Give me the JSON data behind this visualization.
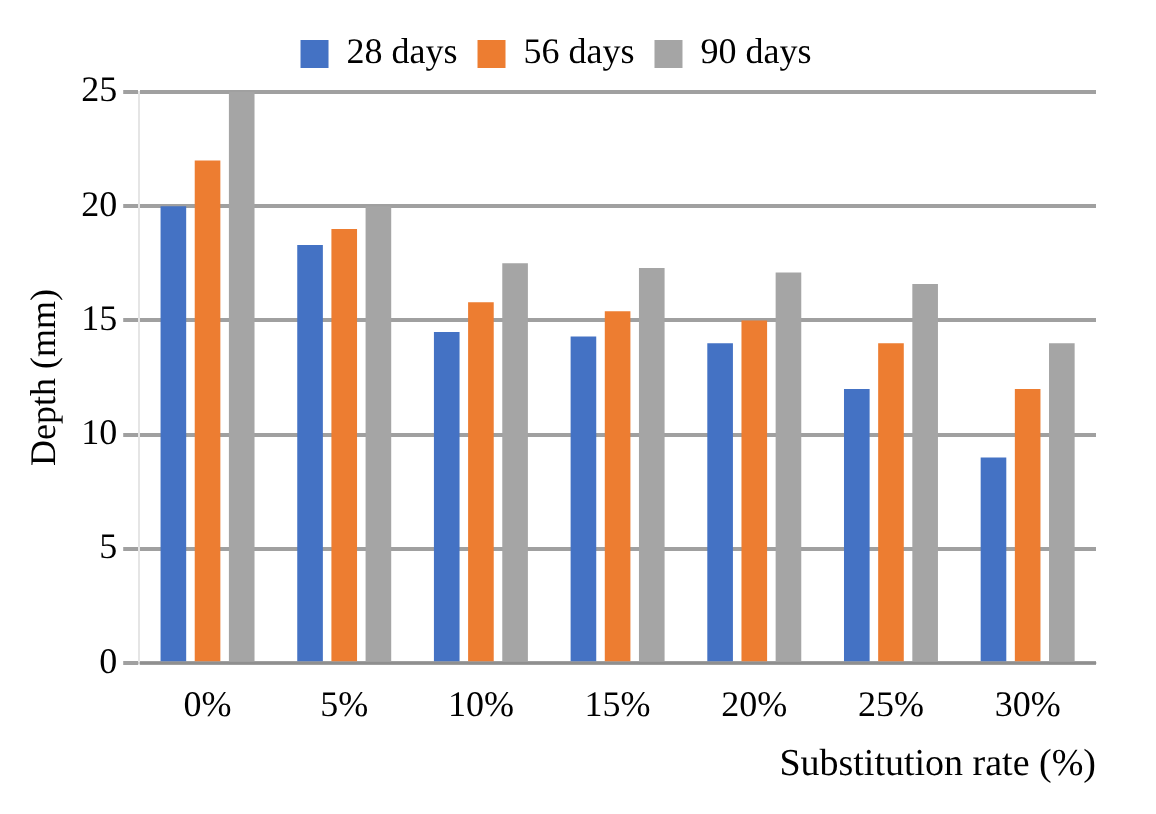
{
  "chart_data": {
    "type": "bar",
    "xlabel": "Substitution rate (%)",
    "ylabel": "Depth (mm)",
    "categories": [
      "0%",
      "5%",
      "10%",
      "15%",
      "20%",
      "25%",
      "30%"
    ],
    "series": [
      {
        "name": "28 days",
        "color": "#4472c4",
        "values": [
          20,
          18.3,
          14.5,
          14.3,
          14,
          12,
          9
        ]
      },
      {
        "name": "56 days",
        "color": "#ed7d31",
        "values": [
          22,
          19,
          15.8,
          15.4,
          15,
          14,
          12
        ]
      },
      {
        "name": "90 days",
        "color": "#a5a5a5",
        "values": [
          25,
          20,
          17.5,
          17.3,
          17.1,
          16.6,
          14
        ]
      }
    ],
    "ylim": [
      0,
      25
    ],
    "yticks": [
      0,
      5,
      10,
      15,
      20,
      25
    ],
    "grid": "y",
    "legend": "top"
  }
}
